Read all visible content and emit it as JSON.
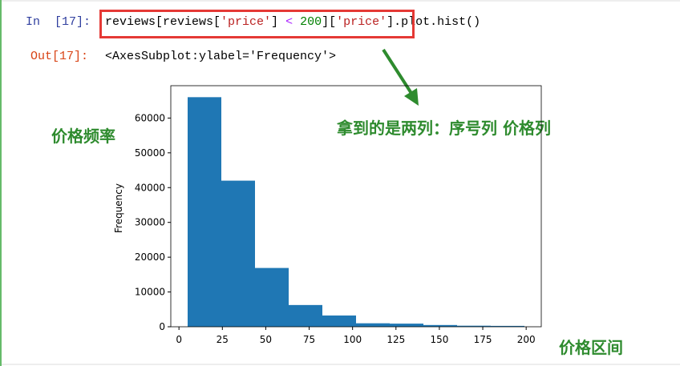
{
  "cell": {
    "prompt": "In  [17]:",
    "code": [
      "reviews[reviews[",
      "'price'",
      "] ",
      "<",
      " ",
      "200",
      "][",
      "'price'",
      "]",
      ".plot.hist()"
    ]
  },
  "output": {
    "prompt": "Out[17]:",
    "text": "<AxesSubplot:ylabel='Frequency'>"
  },
  "annotations": {
    "left": "价格频率",
    "right": "拿到的是两列：序号列 价格列",
    "bottom": "价格区间"
  },
  "chart_data": {
    "type": "histogram",
    "ylabel": "Frequency",
    "color": "#1f77b4",
    "bins": [
      5,
      24.4,
      43.8,
      63.2,
      82.6,
      102,
      121.4,
      140.8,
      160.2,
      179.6,
      199
    ],
    "values": [
      66000,
      42000,
      16900,
      6250,
      3240,
      1000,
      900,
      500,
      300,
      250
    ],
    "xlim": [
      -4.7,
      208.7
    ],
    "ylim": [
      0,
      69300
    ],
    "xticks": [
      0,
      25,
      50,
      75,
      100,
      125,
      150,
      175,
      200
    ],
    "yticks": [
      0,
      10000,
      20000,
      30000,
      40000,
      50000,
      60000
    ]
  }
}
